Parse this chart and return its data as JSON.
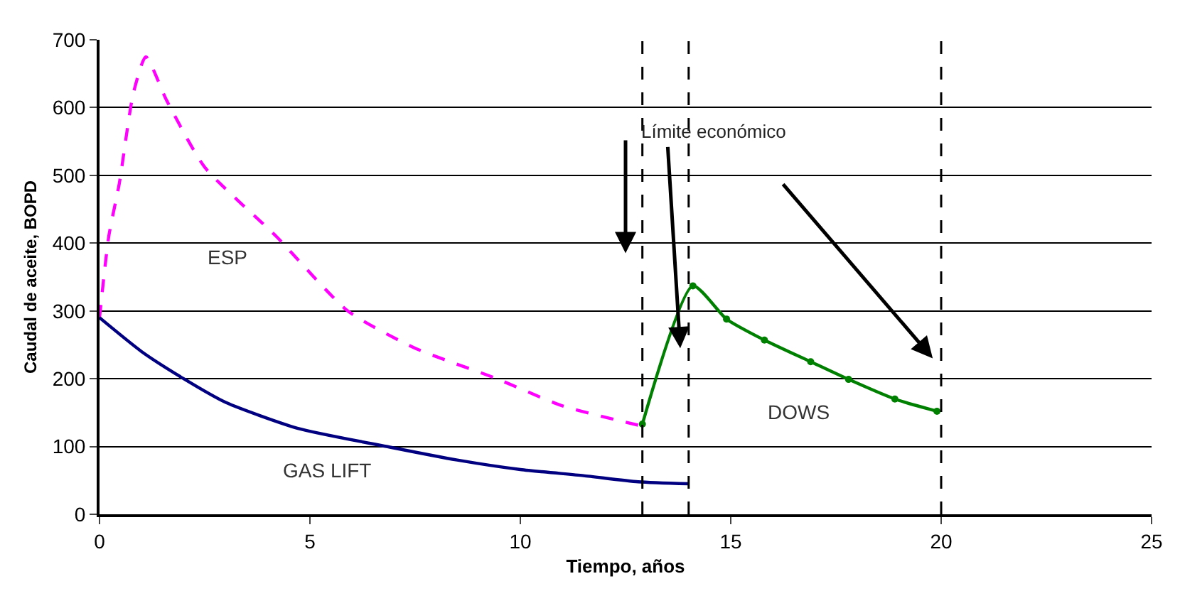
{
  "chart_data": {
    "type": "line",
    "xlabel": "Tiempo, años",
    "ylabel": "Caudal de aceite, BOPD",
    "xlim": [
      0,
      25
    ],
    "xticks": [
      0,
      5,
      10,
      15,
      20,
      25
    ],
    "ylim": [
      0,
      700
    ],
    "yticks": [
      0,
      100,
      200,
      300,
      400,
      500,
      600,
      700
    ],
    "grid": "y",
    "legend": false,
    "series": [
      {
        "name": "ESP",
        "color": "#ff00ff",
        "line_style": "dashed",
        "marker": "none",
        "x": [
          0,
          0.22,
          0.47,
          0.8,
          1.1,
          1.6,
          2.5,
          4.2,
          5.9,
          7.5,
          9.4,
          11,
          12.9
        ],
        "values": [
          290,
          410,
          488,
          620,
          675,
          610,
          512,
          410,
          300,
          245,
          201,
          160,
          130
        ]
      },
      {
        "name": "GAS LIFT",
        "color": "#000080",
        "line_style": "solid",
        "marker": "none",
        "x": [
          0,
          1,
          2,
          3,
          4.7,
          6.9,
          8.5,
          10,
          11.5,
          12.8,
          14
        ],
        "values": [
          290,
          240,
          200,
          165,
          127,
          99,
          80,
          66,
          57,
          48,
          45
        ]
      },
      {
        "name": "DOWS",
        "color": "#008000",
        "line_style": "solid",
        "marker": "circle",
        "x": [
          12.9,
          14.1,
          14.9,
          15.8,
          16.9,
          17.8,
          18.9,
          19.9
        ],
        "values": [
          133,
          337,
          288,
          257,
          225,
          199,
          170,
          152
        ]
      }
    ],
    "ref_lines": [
      {
        "axis": "x",
        "value": 12.9,
        "color": "#000000",
        "line_style": "dashed"
      },
      {
        "axis": "x",
        "value": 14,
        "color": "#000000",
        "line_style": "dashed"
      },
      {
        "axis": "x",
        "value": 20,
        "color": "#000000",
        "line_style": "dashed"
      }
    ],
    "annotations": [
      "Límite económico"
    ]
  }
}
